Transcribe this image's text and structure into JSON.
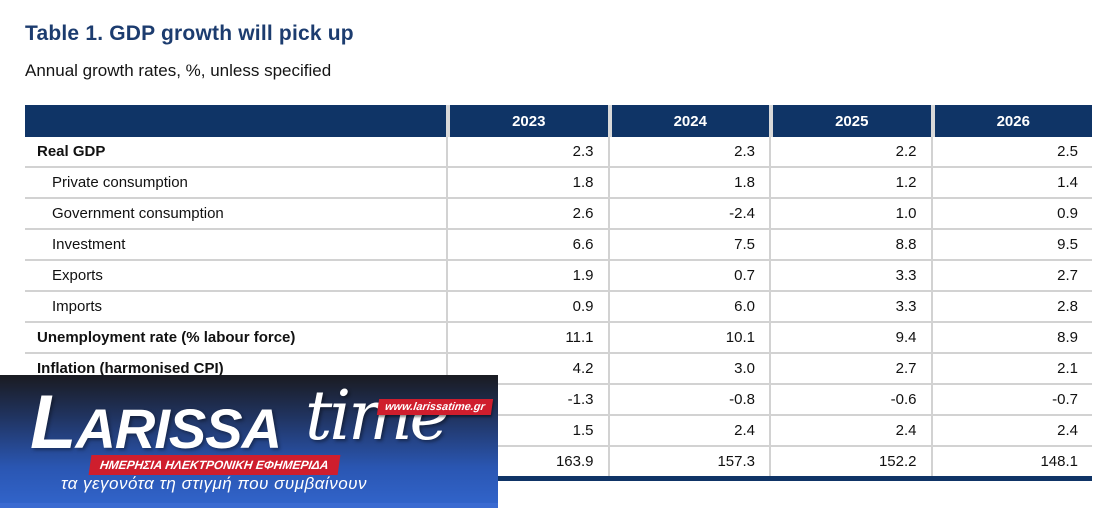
{
  "page": {
    "title": "Table 1. GDP growth will pick up",
    "subtitle": "Annual growth rates, %, unless specified"
  },
  "colors": {
    "header_bg": "#0f3466",
    "title_text": "#1c3c6f",
    "gridline": "#d2d2d2",
    "watermark_red": "#cf1e2d",
    "watermark_blue": "#2a56b2"
  },
  "chart_data": {
    "type": "table",
    "columns": [
      "",
      "2023",
      "2024",
      "2025",
      "2026"
    ],
    "rows": [
      {
        "label": "Real GDP",
        "bold": true,
        "indent": false,
        "values": [
          "2.3",
          "2.3",
          "2.2",
          "2.5"
        ]
      },
      {
        "label": "Private consumption",
        "bold": false,
        "indent": true,
        "values": [
          "1.8",
          "1.8",
          "1.2",
          "1.4"
        ]
      },
      {
        "label": "Government consumption",
        "bold": false,
        "indent": true,
        "values": [
          "2.6",
          "-2.4",
          "1.0",
          "0.9"
        ]
      },
      {
        "label": "Investment",
        "bold": false,
        "indent": true,
        "values": [
          "6.6",
          "7.5",
          "8.8",
          "9.5"
        ]
      },
      {
        "label": "Exports",
        "bold": false,
        "indent": true,
        "values": [
          "1.9",
          "0.7",
          "3.3",
          "2.7"
        ]
      },
      {
        "label": "Imports",
        "bold": false,
        "indent": true,
        "values": [
          "0.9",
          "6.0",
          "3.3",
          "2.8"
        ]
      },
      {
        "label": "Unemployment rate (% labour force)",
        "bold": true,
        "indent": false,
        "values": [
          "11.1",
          "10.1",
          "9.4",
          "8.9"
        ]
      },
      {
        "label": "Inflation (harmonised CPI)",
        "bold": true,
        "indent": false,
        "values": [
          "4.2",
          "3.0",
          "2.7",
          "2.1"
        ]
      },
      {
        "label": "",
        "bold": true,
        "indent": false,
        "hidden_by_watermark": true,
        "values": [
          "-1.3",
          "-0.8",
          "-0.6",
          "-0.7"
        ]
      },
      {
        "label": "",
        "bold": true,
        "indent": false,
        "hidden_by_watermark": true,
        "values": [
          "1.5",
          "2.4",
          "2.4",
          "2.4"
        ]
      },
      {
        "label": "",
        "bold": true,
        "indent": false,
        "hidden_by_watermark": true,
        "values": [
          "163.9",
          "157.3",
          "152.2",
          "148.1"
        ]
      }
    ]
  },
  "watermark": {
    "brand_main": "LARISSA",
    "brand_secondary": "time",
    "url": "www.larissatime.gr",
    "strapline": "ΗΜΕΡΗΣΙΑ ΗΛΕΚΤΡΟΝΙΚΗ ΕΦΗΜΕΡΙΔΑ",
    "tagline": "τα γεγονότα τη στιγμή που συμβαίνουν"
  }
}
